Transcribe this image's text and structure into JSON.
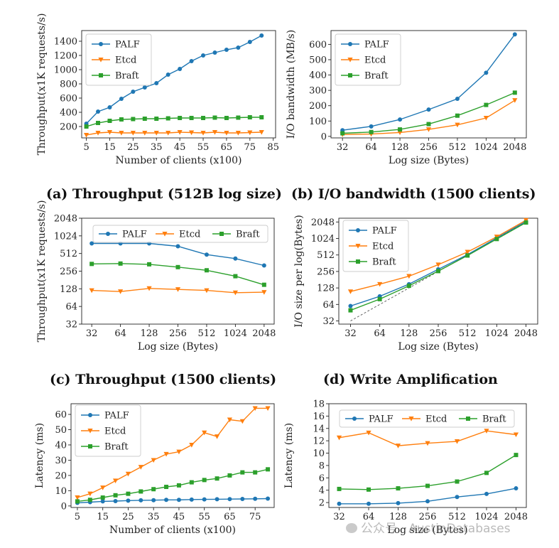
{
  "captions": {
    "a": "(a) Throughput (512B log size)",
    "b": "(b) I/O bandwidth (1500 clients)",
    "c": "(c) Throughput (1500 clients)",
    "d": "(d) Write Amplification"
  },
  "watermark": "公众号 · AustinDatabases",
  "colors": {
    "PALF": "#1f77b4",
    "Etcd": "#ff7f0e",
    "Braft": "#2ca02c"
  },
  "chart_data": [
    {
      "id": "a",
      "type": "line",
      "scale": "linear",
      "xlabel": "Number of clients (x100)",
      "ylabel": "Throughput(x1K requests/s)",
      "xlim": [
        3,
        86
      ],
      "ylim": [
        40,
        1550
      ],
      "xticks": [
        5,
        15,
        25,
        35,
        45,
        55,
        65,
        75,
        85
      ],
      "xtick_labels": [
        "5",
        "15",
        "25",
        "35",
        "45",
        "55",
        "65",
        "75",
        "85"
      ],
      "yticks": [
        200,
        400,
        600,
        800,
        1000,
        1200,
        1400
      ],
      "ytick_labels": [
        "200",
        "400",
        "600",
        "800",
        "1000",
        "1200",
        "1400"
      ],
      "legend": "top-left",
      "x": [
        5,
        10,
        15,
        20,
        25,
        30,
        35,
        40,
        45,
        50,
        55,
        60,
        65,
        70,
        75,
        80
      ],
      "series": [
        {
          "name": "PALF",
          "marker": "circle",
          "values": [
            240,
            410,
            470,
            590,
            690,
            750,
            810,
            930,
            1010,
            1120,
            1200,
            1240,
            1280,
            1310,
            1390,
            1480
          ]
        },
        {
          "name": "Etcd",
          "marker": "triangle",
          "values": [
            80,
            110,
            120,
            110,
            110,
            110,
            110,
            110,
            120,
            115,
            110,
            120,
            110,
            110,
            115,
            120
          ]
        },
        {
          "name": "Braft",
          "marker": "square",
          "values": [
            200,
            250,
            280,
            300,
            305,
            310,
            310,
            315,
            320,
            320,
            320,
            325,
            320,
            325,
            330,
            330
          ]
        }
      ]
    },
    {
      "id": "b",
      "type": "line",
      "scale": "linear",
      "xlabel": "Log size (Bytes)",
      "ylabel": "I/O bandwidth (MB/s)",
      "xlim": [
        -0.4,
        6.4
      ],
      "ylim": [
        -10,
        690
      ],
      "categories": [
        "32",
        "64",
        "128",
        "256",
        "512",
        "1024",
        "2048"
      ],
      "yticks": [
        0,
        100,
        200,
        300,
        400,
        500,
        600
      ],
      "ytick_labels": [
        "0",
        "100",
        "200",
        "300",
        "400",
        "500",
        "600"
      ],
      "legend": "top-left",
      "series": [
        {
          "name": "PALF",
          "marker": "circle",
          "values": [
            40,
            65,
            110,
            175,
            245,
            415,
            665
          ]
        },
        {
          "name": "Etcd",
          "marker": "triangle",
          "values": [
            12,
            15,
            25,
            45,
            75,
            120,
            235
          ]
        },
        {
          "name": "Braft",
          "marker": "square",
          "values": [
            20,
            28,
            45,
            80,
            135,
            205,
            285
          ]
        }
      ]
    },
    {
      "id": "c",
      "type": "line",
      "scale": "log2",
      "xlabel": "Log size (Bytes)",
      "ylabel": "Throughput(x1K requests/s)",
      "xlim": [
        -0.35,
        6.35
      ],
      "ylim": [
        32,
        2048
      ],
      "categories": [
        "32",
        "64",
        "128",
        "256",
        "512",
        "1024",
        "2048"
      ],
      "yticks": [
        32,
        64,
        128,
        256,
        512,
        1024,
        2048
      ],
      "ytick_labels": [
        "32",
        "64",
        "128",
        "256",
        "512",
        "1024",
        "2048"
      ],
      "legend": "top-center",
      "series": [
        {
          "name": "PALF",
          "marker": "circle",
          "values": [
            760,
            760,
            760,
            680,
            490,
            420,
            320
          ]
        },
        {
          "name": "Etcd",
          "marker": "triangle",
          "values": [
            120,
            115,
            130,
            125,
            120,
            110,
            112
          ]
        },
        {
          "name": "Braft",
          "marker": "square",
          "values": [
            340,
            345,
            335,
            300,
            265,
            210,
            150
          ]
        }
      ]
    },
    {
      "id": "d",
      "type": "line",
      "scale": "log2",
      "xlabel": "Log size (Bytes)",
      "ylabel": "I/O size per log(Bytes)",
      "xlim": [
        -0.4,
        6.4
      ],
      "ylim": [
        28,
        2400
      ],
      "categories": [
        "32",
        "64",
        "128",
        "256",
        "512",
        "1024",
        "2048"
      ],
      "yticks": [
        32,
        64,
        128,
        256,
        512,
        1024,
        2048
      ],
      "ytick_labels": [
        "32",
        "64",
        "128",
        "256",
        "512",
        "1024",
        "2048"
      ],
      "legend": "top-left",
      "reference_line": {
        "style": "dashed",
        "from": [
          32,
          32
        ],
        "to": [
          2048,
          2048
        ]
      },
      "series": [
        {
          "name": "PALF",
          "marker": "circle",
          "values": [
            60,
            90,
            150,
            280,
            520,
            1050,
            2100
          ]
        },
        {
          "name": "Etcd",
          "marker": "triangle",
          "values": [
            110,
            150,
            210,
            340,
            580,
            1100,
            2200
          ]
        },
        {
          "name": "Braft",
          "marker": "square",
          "values": [
            50,
            80,
            140,
            260,
            500,
            1000,
            2000
          ]
        }
      ]
    },
    {
      "id": "e",
      "type": "line",
      "scale": "linear",
      "xlabel": "Number of clients (x100)",
      "ylabel": "Latency (ms)",
      "xlim": [
        2.5,
        82.5
      ],
      "ylim": [
        -1,
        67
      ],
      "xticks": [
        5,
        15,
        25,
        35,
        45,
        55,
        65,
        75
      ],
      "xtick_labels": [
        "5",
        "15",
        "25",
        "35",
        "45",
        "55",
        "65",
        "75"
      ],
      "yticks": [
        0,
        10,
        20,
        30,
        40,
        50,
        60
      ],
      "ytick_labels": [
        "0",
        "10",
        "20",
        "30",
        "40",
        "50",
        "60"
      ],
      "legend": "top-left",
      "x": [
        5,
        10,
        15,
        20,
        25,
        30,
        35,
        40,
        45,
        50,
        55,
        60,
        65,
        70,
        75,
        80
      ],
      "series": [
        {
          "name": "PALF",
          "marker": "circle",
          "values": [
            2,
            2.5,
            3,
            3.2,
            3.5,
            3.7,
            3.8,
            4,
            4,
            4.2,
            4.3,
            4.4,
            4.5,
            4.6,
            4.7,
            4.8
          ]
        },
        {
          "name": "Etcd",
          "marker": "triangle",
          "values": [
            5.5,
            8,
            12,
            16.5,
            21,
            25.5,
            30,
            34,
            35.5,
            40,
            48,
            45.5,
            56.5,
            55.5,
            64,
            64
          ]
        },
        {
          "name": "Braft",
          "marker": "square",
          "values": [
            3,
            4,
            5.5,
            7,
            8,
            9.5,
            11,
            12.5,
            13.5,
            15.5,
            17,
            18,
            20,
            22,
            22,
            24
          ]
        }
      ]
    },
    {
      "id": "f",
      "type": "line",
      "scale": "linear",
      "xlabel": "Log size (Bytes)",
      "ylabel": "Latency (ms)",
      "xlim": [
        -0.35,
        6.35
      ],
      "ylim": [
        1.2,
        18
      ],
      "categories": [
        "32",
        "64",
        "128",
        "256",
        "512",
        "1024",
        "2048"
      ],
      "yticks": [
        2,
        4,
        6,
        8,
        10,
        12,
        14,
        16,
        18
      ],
      "ytick_labels": [
        "2",
        "4",
        "6",
        "8",
        "10",
        "12",
        "14",
        "16",
        "18"
      ],
      "legend": "top-center",
      "series": [
        {
          "name": "PALF",
          "marker": "circle",
          "values": [
            1.8,
            1.8,
            1.9,
            2.2,
            2.9,
            3.4,
            4.3
          ]
        },
        {
          "name": "Etcd",
          "marker": "triangle",
          "values": [
            12.5,
            13.3,
            11.2,
            11.6,
            11.9,
            13.6,
            13
          ]
        },
        {
          "name": "Braft",
          "marker": "square",
          "values": [
            4.2,
            4.1,
            4.3,
            4.7,
            5.4,
            6.8,
            9.7
          ]
        }
      ]
    }
  ]
}
